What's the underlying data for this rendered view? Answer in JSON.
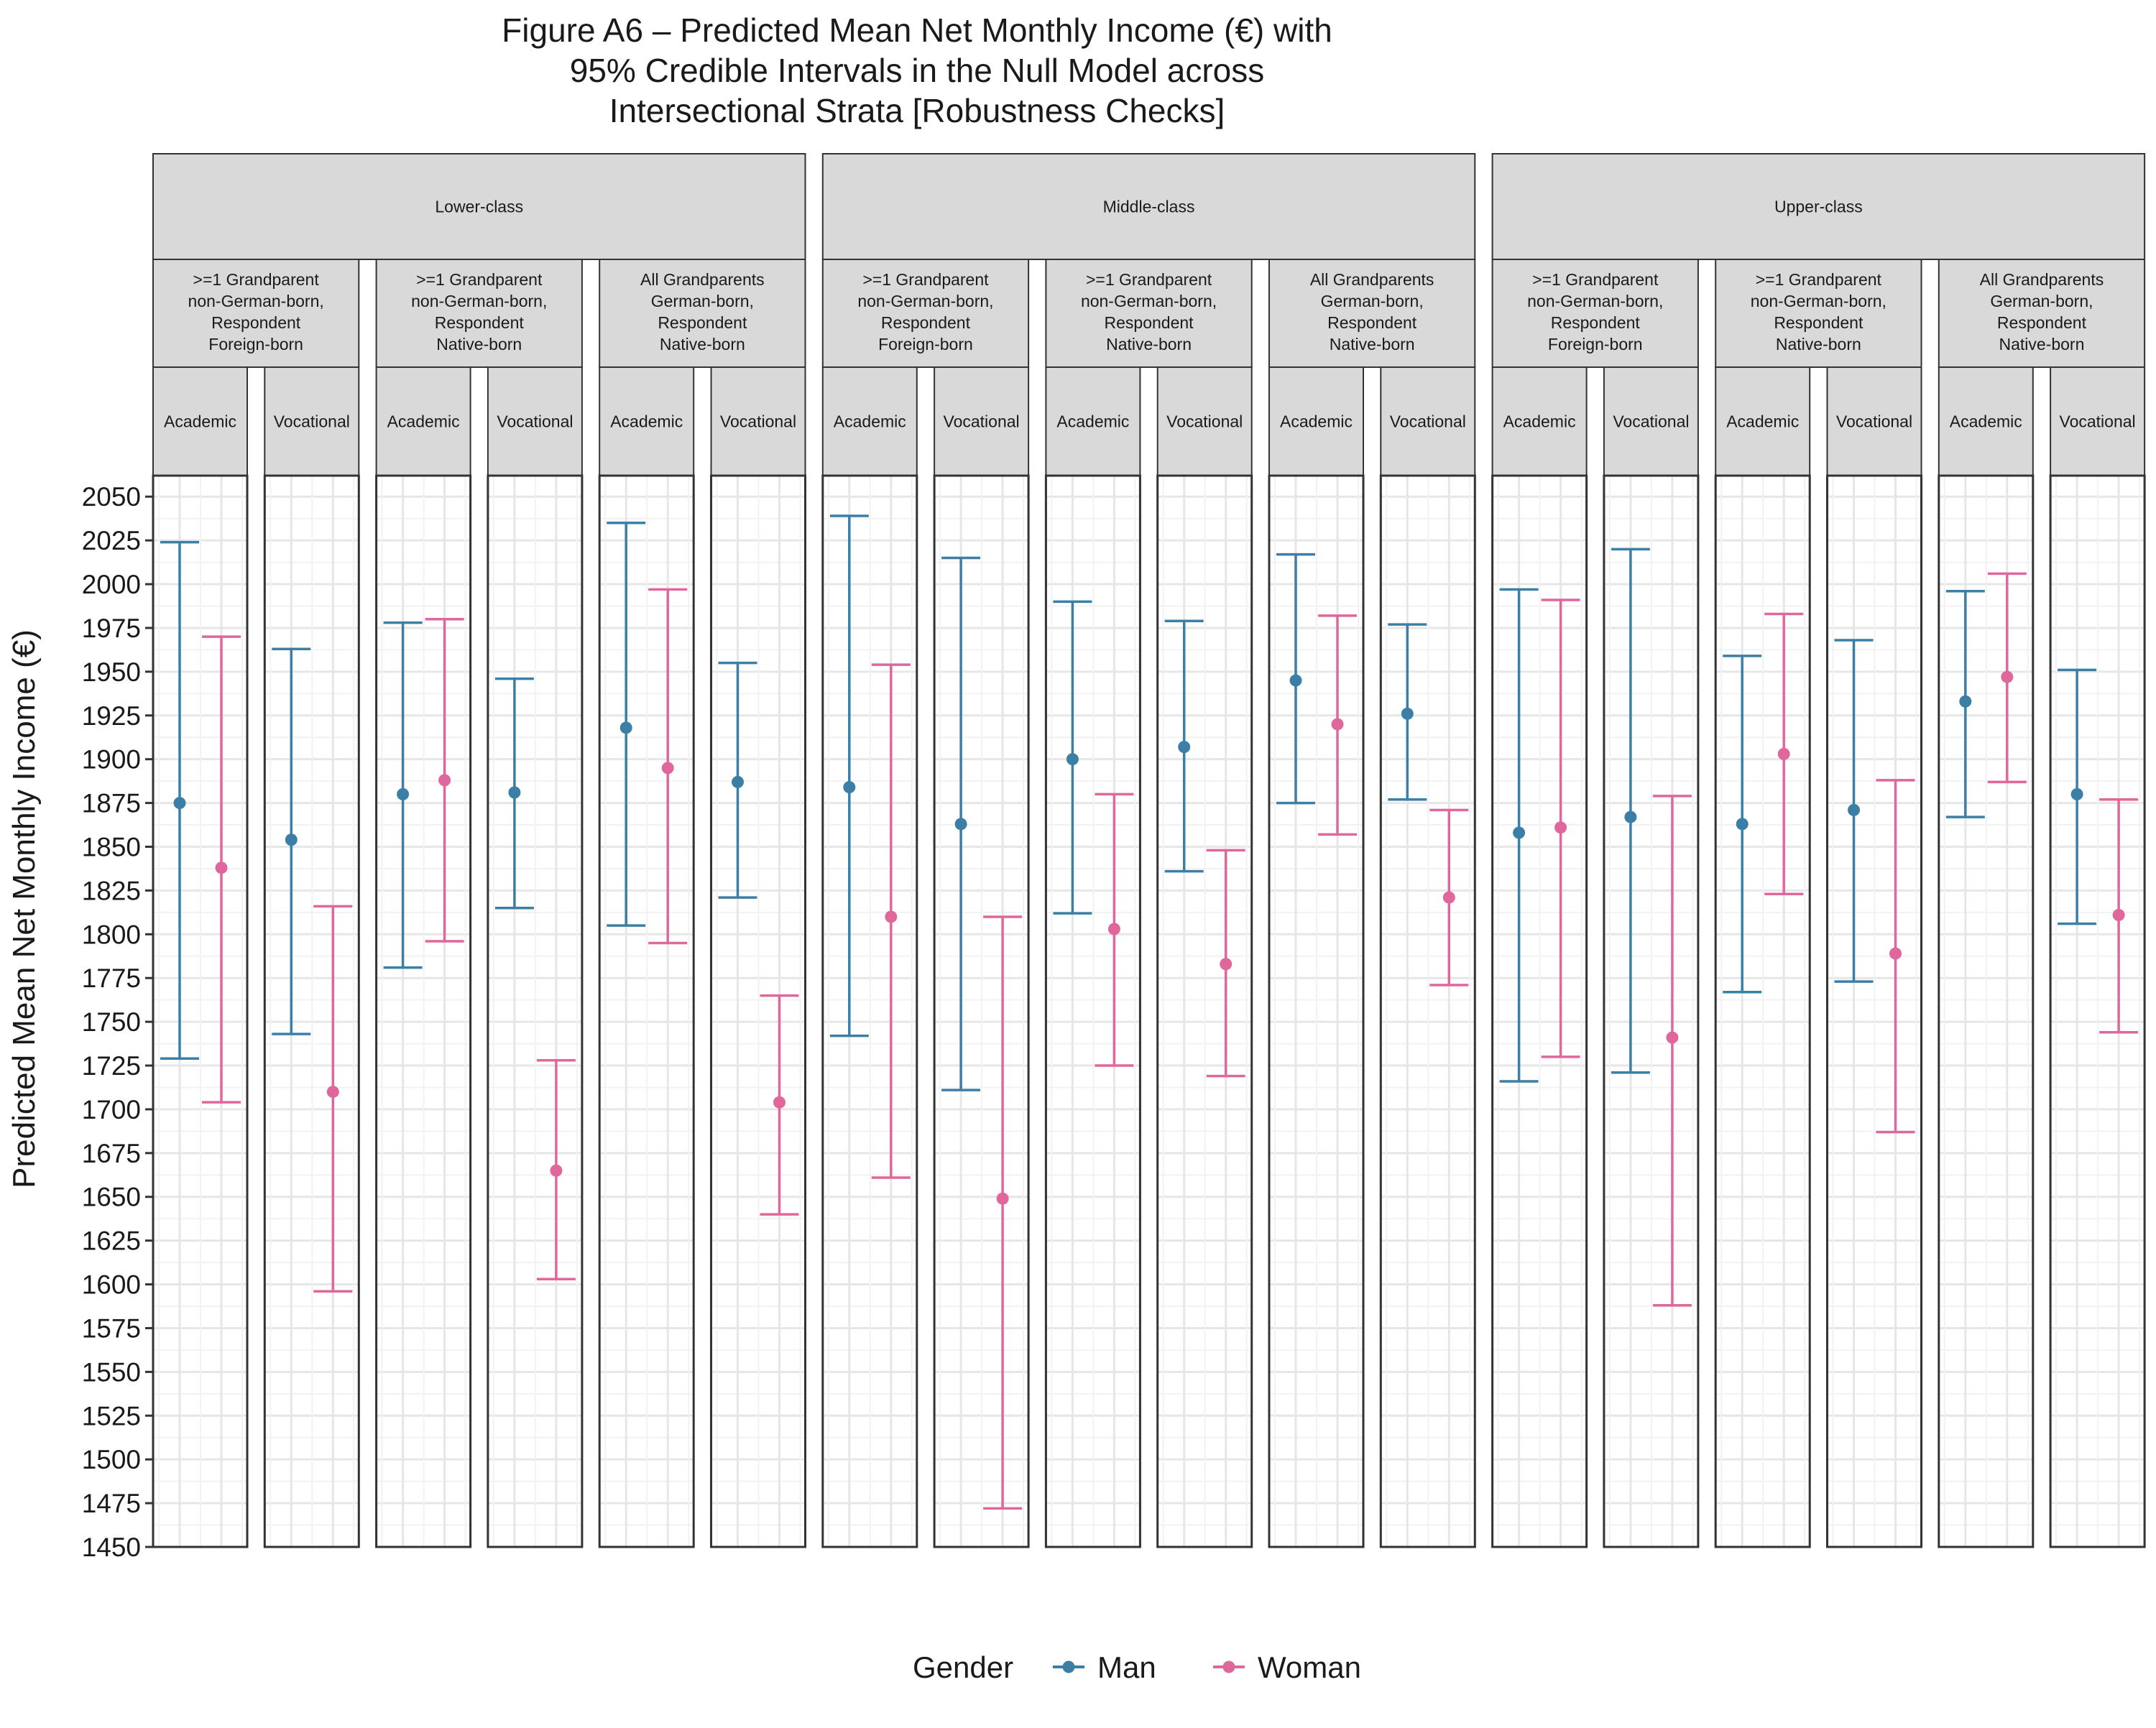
{
  "chart_data": {
    "type": "errorbar",
    "title_lines": [
      "Figure A6 – Predicted Mean Net Monthly Income (€) with",
      "95% Credible Intervals in the Null Model across",
      "Intersectional Strata [Robustness Checks]"
    ],
    "ylabel": "Predicted Mean Net Monthly Income (€)",
    "xlabel": "",
    "ylim": [
      1450,
      2062
    ],
    "yticks": [
      1450,
      1475,
      1500,
      1525,
      1550,
      1575,
      1600,
      1625,
      1650,
      1675,
      1700,
      1725,
      1750,
      1775,
      1800,
      1825,
      1850,
      1875,
      1900,
      1925,
      1950,
      1975,
      2000,
      2025,
      2050
    ],
    "grid": true,
    "legend": {
      "title": "Gender",
      "position": "bottom",
      "entries": [
        {
          "name": "Man",
          "color": "#3b7fa6"
        },
        {
          "name": "Woman",
          "color": "#e0679c"
        }
      ]
    },
    "classes": [
      "Lower-class",
      "Middle-class",
      "Upper-class"
    ],
    "origins": [
      ">=1 Grandparent non-German-born, Respondent Foreign-born",
      ">=1 Grandparent non-German-born, Respondent Native-born",
      "All Grandparents German-born, Respondent Native-born"
    ],
    "origin_lines": [
      [
        ">=1 Grandparent",
        "non-German-born,",
        "Respondent",
        "Foreign-born"
      ],
      [
        ">=1 Grandparent",
        "non-German-born,",
        "Respondent",
        "Native-born"
      ],
      [
        "All Grandparents",
        "German-born,",
        "Respondent",
        "Native-born"
      ]
    ],
    "education": [
      "Academic",
      "Vocational"
    ],
    "panels": [
      {
        "class": "Lower-class",
        "origin": 0,
        "education": "Academic",
        "man": {
          "mean": 1875,
          "lo": 1729,
          "hi": 2024
        },
        "woman": {
          "mean": 1838,
          "lo": 1704,
          "hi": 1970
        }
      },
      {
        "class": "Lower-class",
        "origin": 0,
        "education": "Vocational",
        "man": {
          "mean": 1854,
          "lo": 1743,
          "hi": 1963
        },
        "woman": {
          "mean": 1710,
          "lo": 1596,
          "hi": 1816
        }
      },
      {
        "class": "Lower-class",
        "origin": 1,
        "education": "Academic",
        "man": {
          "mean": 1880,
          "lo": 1781,
          "hi": 1978
        },
        "woman": {
          "mean": 1888,
          "lo": 1796,
          "hi": 1980
        }
      },
      {
        "class": "Lower-class",
        "origin": 1,
        "education": "Vocational",
        "man": {
          "mean": 1881,
          "lo": 1815,
          "hi": 1946
        },
        "woman": {
          "mean": 1665,
          "lo": 1603,
          "hi": 1728
        }
      },
      {
        "class": "Lower-class",
        "origin": 2,
        "education": "Academic",
        "man": {
          "mean": 1918,
          "lo": 1805,
          "hi": 2035
        },
        "woman": {
          "mean": 1895,
          "lo": 1795,
          "hi": 1997
        }
      },
      {
        "class": "Lower-class",
        "origin": 2,
        "education": "Vocational",
        "man": {
          "mean": 1887,
          "lo": 1821,
          "hi": 1955
        },
        "woman": {
          "mean": 1704,
          "lo": 1640,
          "hi": 1765
        }
      },
      {
        "class": "Middle-class",
        "origin": 0,
        "education": "Academic",
        "man": {
          "mean": 1884,
          "lo": 1742,
          "hi": 2039
        },
        "woman": {
          "mean": 1810,
          "lo": 1661,
          "hi": 1954
        }
      },
      {
        "class": "Middle-class",
        "origin": 0,
        "education": "Vocational",
        "man": {
          "mean": 1863,
          "lo": 1711,
          "hi": 2015
        },
        "woman": {
          "mean": 1649,
          "lo": 1472,
          "hi": 1810
        }
      },
      {
        "class": "Middle-class",
        "origin": 1,
        "education": "Academic",
        "man": {
          "mean": 1900,
          "lo": 1812,
          "hi": 1990
        },
        "woman": {
          "mean": 1803,
          "lo": 1725,
          "hi": 1880
        }
      },
      {
        "class": "Middle-class",
        "origin": 1,
        "education": "Vocational",
        "man": {
          "mean": 1907,
          "lo": 1836,
          "hi": 1979
        },
        "woman": {
          "mean": 1783,
          "lo": 1719,
          "hi": 1848
        }
      },
      {
        "class": "Middle-class",
        "origin": 2,
        "education": "Academic",
        "man": {
          "mean": 1945,
          "lo": 1875,
          "hi": 2017
        },
        "woman": {
          "mean": 1920,
          "lo": 1857,
          "hi": 1982
        }
      },
      {
        "class": "Middle-class",
        "origin": 2,
        "education": "Vocational",
        "man": {
          "mean": 1926,
          "lo": 1877,
          "hi": 1977
        },
        "woman": {
          "mean": 1821,
          "lo": 1771,
          "hi": 1871
        }
      },
      {
        "class": "Upper-class",
        "origin": 0,
        "education": "Academic",
        "man": {
          "mean": 1858,
          "lo": 1716,
          "hi": 1997
        },
        "woman": {
          "mean": 1861,
          "lo": 1730,
          "hi": 1991
        }
      },
      {
        "class": "Upper-class",
        "origin": 0,
        "education": "Vocational",
        "man": {
          "mean": 1867,
          "lo": 1721,
          "hi": 2020
        },
        "woman": {
          "mean": 1741,
          "lo": 1588,
          "hi": 1879
        }
      },
      {
        "class": "Upper-class",
        "origin": 1,
        "education": "Academic",
        "man": {
          "mean": 1863,
          "lo": 1767,
          "hi": 1959
        },
        "woman": {
          "mean": 1903,
          "lo": 1823,
          "hi": 1983
        }
      },
      {
        "class": "Upper-class",
        "origin": 1,
        "education": "Vocational",
        "man": {
          "mean": 1871,
          "lo": 1773,
          "hi": 1968
        },
        "woman": {
          "mean": 1789,
          "lo": 1687,
          "hi": 1888
        }
      },
      {
        "class": "Upper-class",
        "origin": 2,
        "education": "Academic",
        "man": {
          "mean": 1933,
          "lo": 1867,
          "hi": 1996
        },
        "woman": {
          "mean": 1947,
          "lo": 1887,
          "hi": 2006
        }
      },
      {
        "class": "Upper-class",
        "origin": 2,
        "education": "Vocational",
        "man": {
          "mean": 1880,
          "lo": 1806,
          "hi": 1951
        },
        "woman": {
          "mean": 1811,
          "lo": 1744,
          "hi": 1877
        }
      }
    ]
  }
}
